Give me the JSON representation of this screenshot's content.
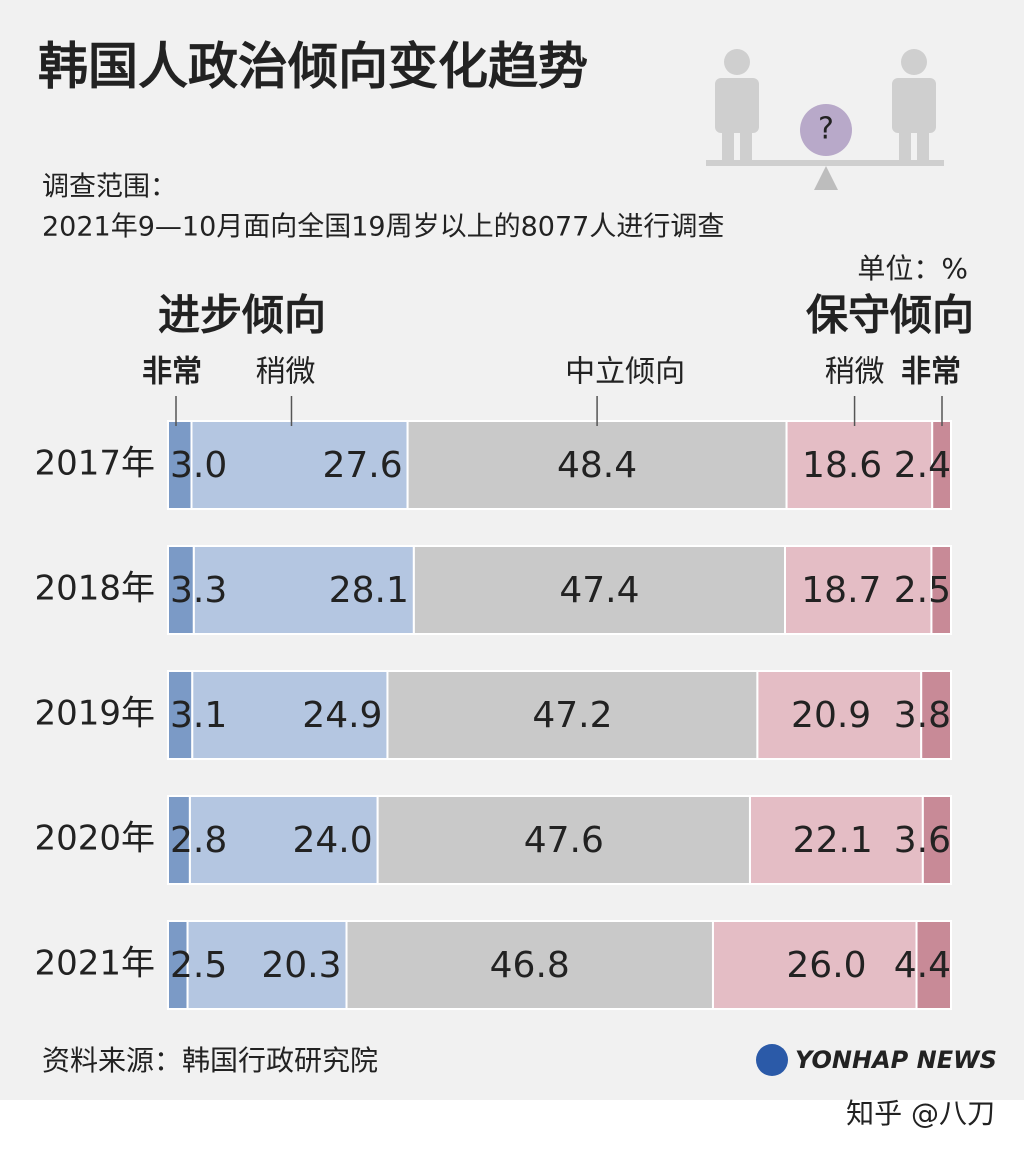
{
  "chart_data": {
    "type": "bar",
    "orientation": "horizontal",
    "stacked": true,
    "title": "韩国人政治倾向变化趋势",
    "subtitle": [
      "调查范围：",
      "2021年9—10月面向全国19周岁以上的8077人进行调查"
    ],
    "unit": "单位：%",
    "icon_text": "?",
    "group_labels": [
      {
        "text": "进步倾向",
        "color": "#7f9ccb"
      },
      {
        "text": "保守倾向",
        "color": "#d38e9c"
      }
    ],
    "categories": [
      "2017年",
      "2018年",
      "2019年",
      "2020年",
      "2021年"
    ],
    "highlight_index": 4,
    "series": [
      {
        "name": "非常",
        "color": "#7b9ac6",
        "values": [
          3.0,
          3.3,
          3.1,
          2.8,
          2.5
        ],
        "value_labels": [
          "3.0",
          "3.3",
          "3.1",
          "2.8",
          "2.5"
        ]
      },
      {
        "name": "稍微",
        "color": "#b4c6e1",
        "values": [
          27.6,
          28.1,
          24.9,
          24.0,
          20.3
        ],
        "value_labels": [
          "27.6",
          "28.1",
          "24.9",
          "24.0",
          "20.3"
        ]
      },
      {
        "name": "中立倾向",
        "color": "#c9c9c9",
        "values": [
          48.4,
          47.4,
          47.2,
          47.6,
          46.8
        ],
        "value_labels": [
          "48.4",
          "47.4",
          "47.2",
          "47.6",
          "46.8"
        ]
      },
      {
        "name": "稍微",
        "color": "#e4bdc5",
        "values": [
          18.6,
          18.7,
          20.9,
          22.1,
          26.0
        ],
        "value_labels": [
          "18.6",
          "18.7",
          "20.9",
          "22.1",
          "26.0"
        ]
      },
      {
        "name": "非常",
        "color": "#c88a97",
        "values": [
          2.4,
          2.5,
          3.8,
          3.6,
          4.4
        ],
        "value_labels": [
          "2.4",
          "2.5",
          "3.8",
          "3.6",
          "4.4"
        ]
      }
    ],
    "source": "资料来源：韩国行政研究院",
    "logo": "YONHAP NEWS",
    "watermark": "知乎 @八刀"
  }
}
